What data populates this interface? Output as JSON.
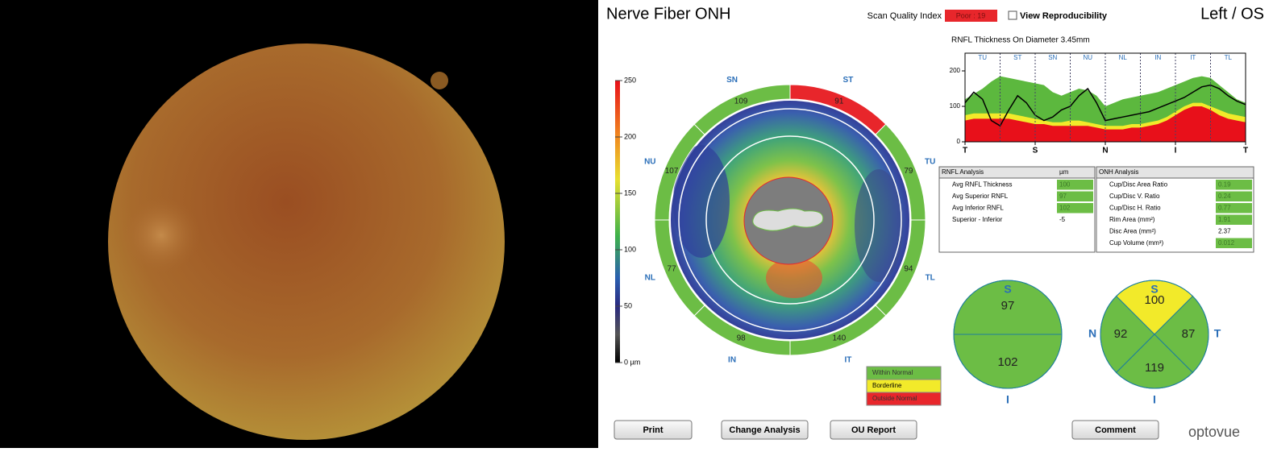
{
  "header": {
    "title": "Nerve Fiber ONH",
    "scan_quality_label": "Scan Quality Index",
    "scan_quality_value": "Poor : 19",
    "view_reproducibility": "View Reproducibility",
    "eye": "Left / OS"
  },
  "thickness_map": {
    "scale_lim": [
      0,
      250
    ],
    "scale_ticks": [
      250,
      200,
      150,
      100,
      50,
      {
        "value": 0,
        "label": "0 µm"
      }
    ],
    "sectors": [
      {
        "name": "ST",
        "value": 91,
        "color": "#e8262b"
      },
      {
        "name": "TU",
        "value": 79,
        "color": "#6cbd45"
      },
      {
        "name": "TL",
        "value": 94,
        "color": "#6cbd45"
      },
      {
        "name": "IT",
        "value": 140,
        "color": "#6cbd45"
      },
      {
        "name": "IN",
        "value": 98,
        "color": "#6cbd45"
      },
      {
        "name": "NL",
        "value": 77,
        "color": "#6cbd45"
      },
      {
        "name": "NU",
        "value": 107,
        "color": "#6cbd45"
      },
      {
        "name": "SN",
        "value": 109,
        "color": "#6cbd45"
      }
    ]
  },
  "chart_data": {
    "type": "line",
    "title": "RNFL Thickness On Diameter 3.45mm",
    "segments": [
      "TU",
      "ST",
      "SN",
      "NU",
      "NL",
      "IN",
      "IT",
      "TL"
    ],
    "x": [
      0,
      1,
      2,
      3,
      4,
      5,
      6,
      7,
      8,
      9,
      10,
      11,
      12,
      13,
      14,
      15,
      16,
      17,
      18,
      19,
      20,
      21,
      22,
      23,
      24,
      25,
      26,
      27,
      28,
      29,
      30,
      31,
      32
    ],
    "xlim": [
      0,
      32
    ],
    "xticks": [
      {
        "value": 0,
        "label": "T"
      },
      {
        "value": 8,
        "label": "S"
      },
      {
        "value": 16,
        "label": "N"
      },
      {
        "value": 24,
        "label": "I"
      },
      {
        "value": 32,
        "label": "T"
      }
    ],
    "ylim": [
      0,
      250
    ],
    "yticks": [
      0,
      100,
      200
    ],
    "series": [
      {
        "name": "Within Normal",
        "color": "#5cb83e",
        "values": [
          120,
          135,
          150,
          170,
          185,
          180,
          175,
          170,
          165,
          160,
          140,
          130,
          140,
          150,
          145,
          130,
          100,
          110,
          120,
          125,
          130,
          135,
          140,
          150,
          160,
          170,
          180,
          185,
          180,
          160,
          140,
          120,
          110
        ]
      },
      {
        "name": "Borderline",
        "color": "#f2ea2a",
        "values": [
          75,
          80,
          80,
          80,
          80,
          80,
          75,
          70,
          65,
          60,
          55,
          55,
          60,
          60,
          55,
          50,
          45,
          45,
          45,
          50,
          50,
          55,
          60,
          70,
          85,
          100,
          110,
          110,
          100,
          90,
          80,
          75,
          70
        ]
      },
      {
        "name": "Outside Normal",
        "color": "#e8101a",
        "values": [
          60,
          65,
          65,
          65,
          65,
          65,
          60,
          55,
          50,
          50,
          45,
          45,
          45,
          45,
          45,
          40,
          35,
          35,
          35,
          40,
          40,
          45,
          50,
          60,
          75,
          90,
          100,
          100,
          90,
          75,
          65,
          60,
          55
        ]
      },
      {
        "name": "Patient",
        "color": "#000000",
        "values": [
          110,
          140,
          120,
          60,
          45,
          90,
          130,
          110,
          75,
          60,
          70,
          90,
          100,
          130,
          150,
          110,
          60,
          65,
          70,
          75,
          80,
          85,
          95,
          105,
          115,
          125,
          140,
          155,
          160,
          150,
          130,
          115,
          105
        ]
      }
    ]
  },
  "rnfl_table": {
    "title": "RNFL Analysis",
    "unit": "µm",
    "rows": [
      {
        "label": "Avg RNFL Thickness",
        "value": 100,
        "color": "#6cbd45"
      },
      {
        "label": "Avg Superior RNFL",
        "value": 97,
        "color": "#6cbd45"
      },
      {
        "label": "Avg Inferior RNFL",
        "value": 102,
        "color": "#6cbd45"
      },
      {
        "label": "Superior - Inferior",
        "value": -5,
        "color": "#ffffff"
      }
    ]
  },
  "onh_table": {
    "title": "ONH Analysis",
    "rows": [
      {
        "label": "Cup/Disc Area Ratio",
        "value": 0.19,
        "color": "#6cbd45"
      },
      {
        "label": "Cup/Disc V. Ratio",
        "value": 0.24,
        "color": "#6cbd45"
      },
      {
        "label": "Cup/Disc H. Ratio",
        "value": 0.77,
        "color": "#6cbd45"
      },
      {
        "label": "Rim Area (mm²)",
        "value": 1.91,
        "color": "#6cbd45"
      },
      {
        "label": "Disc Area (mm²)",
        "value": 2.37,
        "color": "#ffffff"
      },
      {
        "label": "Cup Volume (mm³)",
        "value": 0.012,
        "color": "#6cbd45"
      }
    ]
  },
  "legend": [
    {
      "label": "Within Normal",
      "color": "#6cbd45"
    },
    {
      "label": "Borderline",
      "color": "#f2ea2a"
    },
    {
      "label": "Outside Normal",
      "color": "#e8262b"
    }
  ],
  "hemispheres": {
    "labels": [
      "S",
      "I"
    ],
    "sectors": [
      {
        "name": "S",
        "value": 97,
        "color": "#6cbd45"
      },
      {
        "name": "I",
        "value": 102,
        "color": "#6cbd45"
      }
    ]
  },
  "quadrants": {
    "labels": [
      "S",
      "N",
      "T",
      "I"
    ],
    "sectors": [
      {
        "name": "S",
        "value": 100,
        "color": "#f2ea2a"
      },
      {
        "name": "N",
        "value": 92,
        "color": "#6cbd45"
      },
      {
        "name": "T",
        "value": 87,
        "color": "#6cbd45"
      },
      {
        "name": "I",
        "value": 119,
        "color": "#6cbd45"
      }
    ]
  },
  "buttons": [
    "Print",
    "Change Analysis",
    "OU Report",
    "Comment"
  ],
  "logo": "optovue"
}
